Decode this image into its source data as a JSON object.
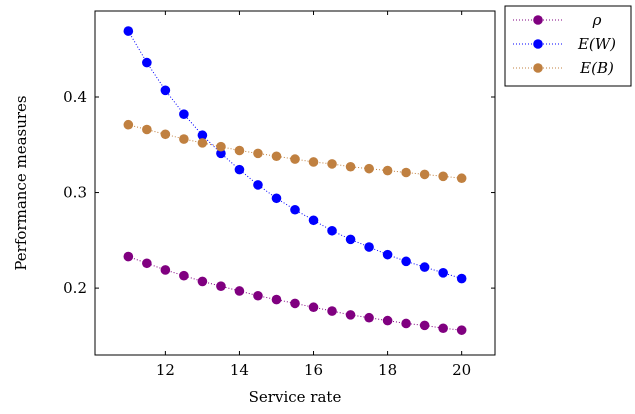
{
  "chart_data": {
    "type": "scatter",
    "title": "",
    "xlabel": "Service rate",
    "ylabel": "Performance measures",
    "xlim": [
      10.1,
      20.9
    ],
    "ylim": [
      0.13,
      0.49
    ],
    "xticks": [
      12,
      14,
      16,
      18,
      20
    ],
    "xtick_labels": [
      "12",
      "14",
      "16",
      "18",
      "20"
    ],
    "yticks": [
      0.2,
      0.3,
      0.4
    ],
    "ytick_labels": [
      "0.2",
      "0.3",
      "0.4"
    ],
    "grid": false,
    "legend_position": "outside-top-right",
    "x": [
      11,
      11.5,
      12,
      12.5,
      13,
      13.5,
      14,
      14.5,
      15,
      15.5,
      16,
      16.5,
      17,
      17.5,
      18,
      18.5,
      19,
      19.5,
      20
    ],
    "series": [
      {
        "name": "ρ",
        "color": "#800080",
        "values": [
          0.233,
          0.226,
          0.219,
          0.213,
          0.207,
          0.202,
          0.197,
          0.192,
          0.188,
          0.184,
          0.18,
          0.176,
          0.172,
          0.169,
          0.166,
          0.163,
          0.161,
          0.158,
          0.156
        ]
      },
      {
        "name": "E(W)",
        "color": "#0000ff",
        "values": [
          0.469,
          0.436,
          0.407,
          0.382,
          0.36,
          0.341,
          0.324,
          0.308,
          0.294,
          0.282,
          0.271,
          0.26,
          0.251,
          0.243,
          0.235,
          0.228,
          0.222,
          0.216,
          0.21
        ]
      },
      {
        "name": "E(B)",
        "color": "#c08040",
        "values": [
          0.371,
          0.366,
          0.361,
          0.356,
          0.352,
          0.348,
          0.344,
          0.341,
          0.338,
          0.335,
          0.332,
          0.33,
          0.327,
          0.325,
          0.323,
          0.321,
          0.319,
          0.317,
          0.315
        ]
      }
    ]
  }
}
